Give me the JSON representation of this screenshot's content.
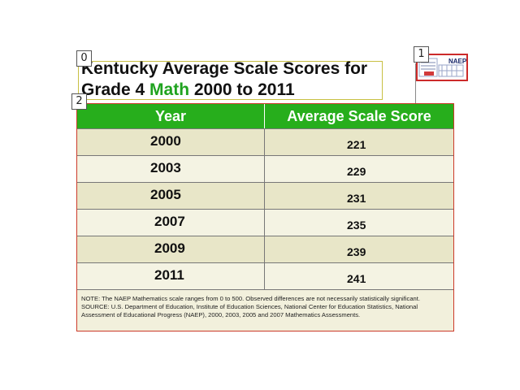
{
  "markers": [
    "0",
    "1",
    "2"
  ],
  "title": {
    "prefix": "Kentucky Average Scale Scores for",
    "line2_start": "Grade 4 ",
    "subject": "Math",
    "line2_end": " 2000 to 2011"
  },
  "logo": {
    "text": "NAEP",
    "icon": "naep-report-card-logo-icon"
  },
  "table": {
    "headers": [
      "Year",
      "Average Scale Score"
    ],
    "rows": [
      {
        "year": "2000",
        "score": "221"
      },
      {
        "year": "2003",
        "score": "229"
      },
      {
        "year": "2005",
        "score": "231"
      },
      {
        "year": "2007",
        "score": "235"
      },
      {
        "year": "2009",
        "score": "239"
      },
      {
        "year": "2011",
        "score": "241"
      }
    ]
  },
  "note": {
    "line1": "NOTE: The NAEP Mathematics scale ranges from 0 to 500. Observed differences are not necessarily statistically significant.",
    "line2": "SOURCE: U.S. Department of Education, Institute of Education Sciences, National Center for Education Statistics, National Assessment of Educational Progress (NAEP), 2000, 2003, 2005 and 2007 Mathematics Assessments."
  },
  "colors": {
    "header_green": "#27ae1c",
    "accent_green": "#1fa31f",
    "frame_red": "#cc3a2a"
  }
}
